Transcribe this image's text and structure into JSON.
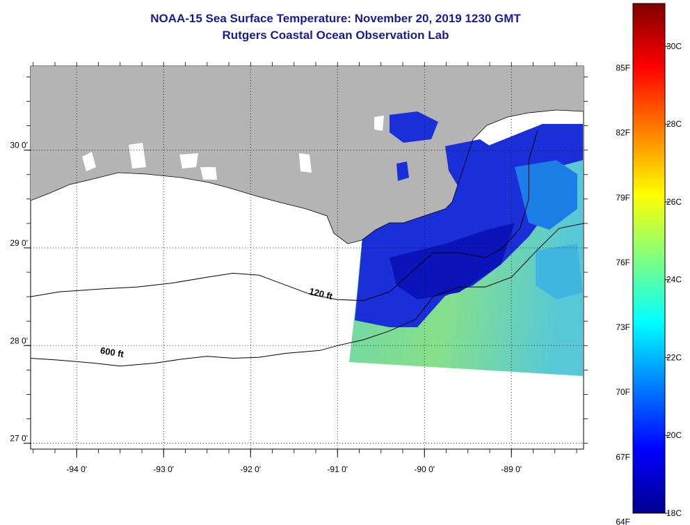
{
  "title": "NOAA-15 Sea Surface Temperature:  November 20, 2019 1230 GMT",
  "subtitle": "Rutgers Coastal Ocean Observation Lab",
  "chart_data": {
    "type": "heatmap",
    "title": "NOAA-15 Sea Surface Temperature:  November 20, 2019 1230 GMT",
    "subtitle": "Rutgers Coastal Ocean Observation Lab",
    "x_ticks": [
      "-94 0'",
      "-93 0'",
      "-92 0'",
      "-91 0'",
      "-90 0'",
      "-89 0'"
    ],
    "x_tick_values": [
      -94,
      -93,
      -92,
      -91,
      -90,
      -89
    ],
    "y_ticks": [
      "30 0'",
      "29 0'",
      "28 0'",
      "27 0'"
    ],
    "y_tick_values": [
      30,
      29,
      28,
      27
    ],
    "xlim": [
      -94.53,
      -88.17
    ],
    "ylim": [
      26.94,
      30.86
    ],
    "grid": "dotted",
    "contours": [
      {
        "label": "120 ft",
        "points": [
          [
            -94.53,
            28.5
          ],
          [
            -94.2,
            28.55
          ],
          [
            -93.7,
            28.58
          ],
          [
            -93.3,
            28.6
          ],
          [
            -92.9,
            28.64
          ],
          [
            -92.5,
            28.7
          ],
          [
            -92.2,
            28.74
          ],
          [
            -91.9,
            28.72
          ],
          [
            -91.6,
            28.62
          ],
          [
            -91.3,
            28.52
          ],
          [
            -91.0,
            28.47
          ],
          [
            -90.7,
            28.46
          ],
          [
            -90.4,
            28.55
          ],
          [
            -90.15,
            28.75
          ],
          [
            -89.9,
            28.95
          ],
          [
            -89.6,
            28.95
          ],
          [
            -89.3,
            28.9
          ],
          [
            -89.1,
            29.0
          ],
          [
            -88.9,
            29.2
          ],
          [
            -88.8,
            29.5
          ],
          [
            -88.8,
            29.9
          ],
          [
            -88.7,
            30.2
          ]
        ]
      },
      {
        "label": "600 ft",
        "points": [
          [
            -94.53,
            27.87
          ],
          [
            -94.2,
            27.85
          ],
          [
            -93.8,
            27.82
          ],
          [
            -93.5,
            27.79
          ],
          [
            -93.1,
            27.82
          ],
          [
            -92.8,
            27.86
          ],
          [
            -92.5,
            27.89
          ],
          [
            -92.2,
            27.87
          ],
          [
            -91.9,
            27.88
          ],
          [
            -91.6,
            27.92
          ],
          [
            -91.2,
            27.95
          ],
          [
            -91.0,
            28.0
          ],
          [
            -90.7,
            28.06
          ],
          [
            -90.4,
            28.15
          ],
          [
            -90.1,
            28.27
          ],
          [
            -89.9,
            28.5
          ],
          [
            -89.6,
            28.6
          ],
          [
            -89.3,
            28.6
          ],
          [
            -89.0,
            28.7
          ],
          [
            -88.7,
            28.98
          ],
          [
            -88.45,
            29.2
          ],
          [
            -88.17,
            29.25
          ]
        ]
      }
    ],
    "colorbar": {
      "fahrenheit_labels": [
        "85F",
        "82F",
        "79F",
        "76F",
        "73F",
        "70F",
        "67F",
        "64F"
      ],
      "fahrenheit_values": [
        85,
        82,
        79,
        76,
        73,
        70,
        67,
        64
      ],
      "celsius_labels": [
        "30C",
        "28C",
        "26C",
        "24C",
        "22C",
        "20C",
        "18C"
      ],
      "celsius_values": [
        30,
        28,
        26,
        24,
        22,
        20,
        18
      ],
      "range_c": [
        18,
        31.1
      ],
      "colormap": "jet"
    },
    "colors": {
      "land": "#b4b4b4",
      "no_data": "#ffffff",
      "title": "#1a1a99"
    }
  }
}
